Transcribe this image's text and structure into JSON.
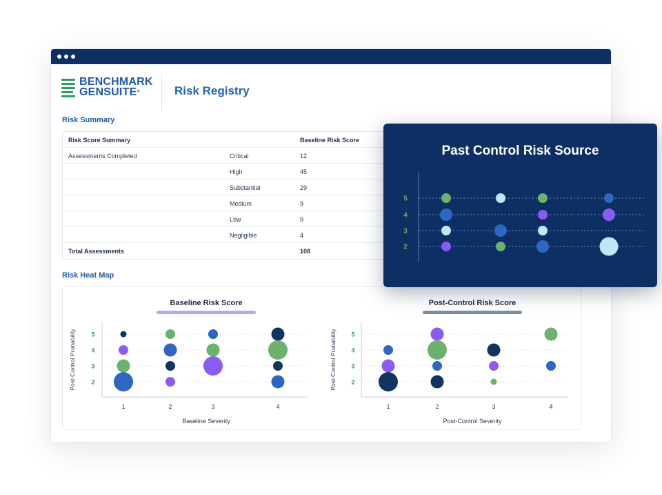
{
  "window": {
    "controls": [
      "close",
      "minimize",
      "maximize"
    ]
  },
  "header": {
    "logo_line1": "BENCHMARK",
    "logo_line2": "GENSUITE",
    "logo_mark": "®",
    "page_title": "Risk Registry"
  },
  "risk_summary": {
    "section_title": "Risk Summary",
    "header": {
      "col1": "Risk Score Summary",
      "col2": "",
      "col3": "Baseline Risk Score"
    },
    "rows": [
      {
        "col1": "Assessments Completed",
        "col2": "Critical",
        "col3": "12"
      },
      {
        "col1": "",
        "col2": "High",
        "col3": "45"
      },
      {
        "col1": "",
        "col2": "Substantial",
        "col3": "29"
      },
      {
        "col1": "",
        "col2": "Medium",
        "col3": "9"
      },
      {
        "col1": "",
        "col2": "Low",
        "col3": "9"
      },
      {
        "col1": "",
        "col2": "Negligible",
        "col3": "4"
      }
    ],
    "total": {
      "label": "Total Assessments",
      "value": "108"
    }
  },
  "heat_map": {
    "section_title": "Risk Heat Map",
    "colors": {
      "navy": "#123461",
      "blue": "#2f66c2",
      "purple": "#8a5cf5",
      "green": "#6cb26f",
      "lightblue": "#bde6f6",
      "label_green": "#3d9a4a"
    }
  },
  "chart_data": [
    {
      "type": "scatter",
      "title": "Baseline Risk Score",
      "xlabel": "Baseline Severity",
      "ylabel": "Post-Control Probability",
      "x_ticks": [
        1,
        2,
        3,
        4
      ],
      "y_ticks": [
        2,
        3,
        4,
        5
      ],
      "underline_color": "#b9a6f3",
      "grid": true,
      "points": [
        {
          "x": 1,
          "y": 5,
          "size": 1,
          "color": "navy"
        },
        {
          "x": 1,
          "y": 4,
          "size": 2,
          "color": "purple"
        },
        {
          "x": 1,
          "y": 3,
          "size": 3,
          "color": "green"
        },
        {
          "x": 1,
          "y": 2,
          "size": 5,
          "color": "blue"
        },
        {
          "x": 2,
          "y": 5,
          "size": 2,
          "color": "green"
        },
        {
          "x": 2,
          "y": 4,
          "size": 3,
          "color": "blue"
        },
        {
          "x": 2,
          "y": 3,
          "size": 2,
          "color": "navy"
        },
        {
          "x": 2,
          "y": 2,
          "size": 2,
          "color": "purple"
        },
        {
          "x": 3,
          "y": 5,
          "size": 2,
          "color": "blue"
        },
        {
          "x": 3,
          "y": 4,
          "size": 3,
          "color": "green"
        },
        {
          "x": 3,
          "y": 3,
          "size": 5,
          "color": "purple"
        },
        {
          "x": 4,
          "y": 5,
          "size": 3,
          "color": "navy"
        },
        {
          "x": 4,
          "y": 4,
          "size": 5,
          "color": "green"
        },
        {
          "x": 4,
          "y": 3,
          "size": 2,
          "color": "navy"
        },
        {
          "x": 4,
          "y": 2,
          "size": 3,
          "color": "blue"
        }
      ]
    },
    {
      "type": "scatter",
      "title": "Post-Control Risk Score",
      "xlabel": "Post-Control Severity",
      "ylabel": "Post-Control Probability",
      "x_ticks": [
        1,
        2,
        3,
        4
      ],
      "y_ticks": [
        2,
        3,
        4,
        5
      ],
      "underline_color": "#7a8ea6",
      "grid": true,
      "points": [
        {
          "x": 1,
          "y": 4,
          "size": 2,
          "color": "blue"
        },
        {
          "x": 1,
          "y": 3,
          "size": 3,
          "color": "purple"
        },
        {
          "x": 1,
          "y": 2,
          "size": 5,
          "color": "navy"
        },
        {
          "x": 2,
          "y": 5,
          "size": 3,
          "color": "purple"
        },
        {
          "x": 2,
          "y": 4,
          "size": 5,
          "color": "green"
        },
        {
          "x": 2,
          "y": 3,
          "size": 2,
          "color": "blue"
        },
        {
          "x": 2,
          "y": 2,
          "size": 3,
          "color": "navy"
        },
        {
          "x": 3,
          "y": 4,
          "size": 3,
          "color": "navy"
        },
        {
          "x": 3,
          "y": 3,
          "size": 2,
          "color": "purple"
        },
        {
          "x": 3,
          "y": 2,
          "size": 1,
          "color": "green"
        },
        {
          "x": 4,
          "y": 5,
          "size": 3,
          "color": "green"
        },
        {
          "x": 4,
          "y": 3,
          "size": 2,
          "color": "blue"
        }
      ]
    },
    {
      "type": "scatter",
      "title": "Past Control Risk Source",
      "xlabel": "",
      "ylabel": "",
      "y_ticks": [
        2,
        3,
        4,
        5
      ],
      "x_ticks": [
        1,
        2,
        3,
        4
      ],
      "show_x_ticks": false,
      "grid": true,
      "points": [
        {
          "x": 1,
          "y": 5,
          "size": 2,
          "color": "green"
        },
        {
          "x": 1,
          "y": 4,
          "size": 3,
          "color": "blue"
        },
        {
          "x": 1,
          "y": 3,
          "size": 2,
          "color": "lightblue"
        },
        {
          "x": 1,
          "y": 2,
          "size": 2,
          "color": "purple"
        },
        {
          "x": 2,
          "y": 5,
          "size": 2,
          "color": "lightblue"
        },
        {
          "x": 2,
          "y": 3,
          "size": 3,
          "color": "blue"
        },
        {
          "x": 2,
          "y": 2,
          "size": 2,
          "color": "green"
        },
        {
          "x": 3,
          "y": 5,
          "size": 2,
          "color": "green"
        },
        {
          "x": 3,
          "y": 4,
          "size": 2,
          "color": "purple"
        },
        {
          "x": 3,
          "y": 3,
          "size": 2,
          "color": "lightblue"
        },
        {
          "x": 3,
          "y": 2,
          "size": 3,
          "color": "blue"
        },
        {
          "x": 4,
          "y": 5,
          "size": 2,
          "color": "blue"
        },
        {
          "x": 4,
          "y": 4,
          "size": 3,
          "color": "purple"
        },
        {
          "x": 4,
          "y": 2,
          "size": 5,
          "color": "lightblue"
        }
      ]
    }
  ]
}
